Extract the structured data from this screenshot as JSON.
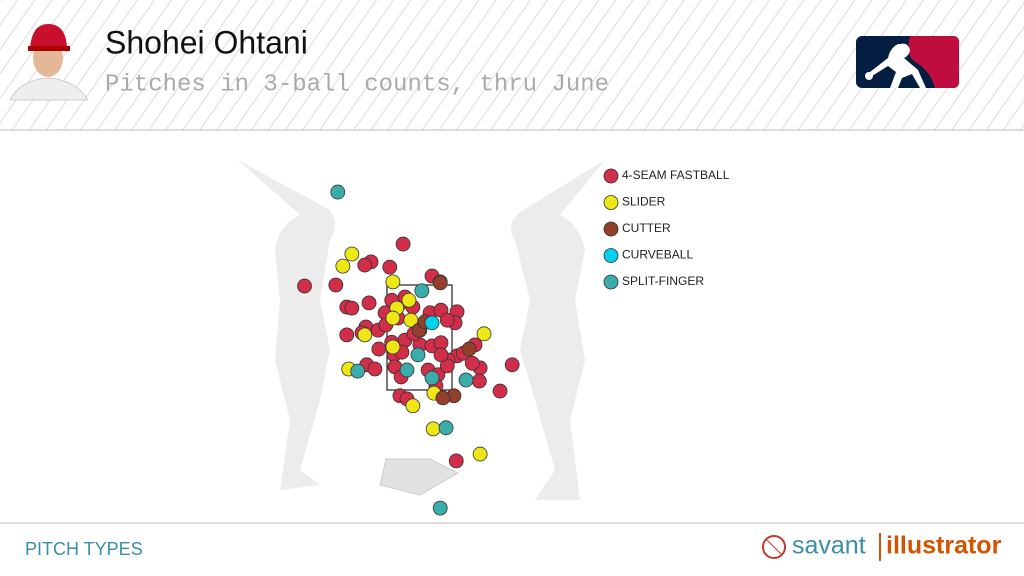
{
  "chart_data": {
    "type": "scatter",
    "title": "Shohei Ohtani",
    "subtitle": "Pitches in 3-ball counts, thru June",
    "xlim": [
      -5,
      5
    ],
    "ylim": [
      -1,
      6.5
    ],
    "legend": "right",
    "series": [
      {
        "name": "4-SEAM FASTBALL",
        "color": "#d22d49",
        "x": [
          -0.42,
          -1.24,
          -1.4,
          -0.76,
          0.32,
          -2.94,
          -2.14,
          -1.86,
          -1.73,
          -1.29,
          -0.88,
          -0.53,
          -0.17,
          0.27,
          0.55,
          0.96,
          0.91,
          0.71,
          -1.37,
          -1.06,
          -1.86,
          -1.47,
          -0.71,
          -0.37,
          0.01,
          0.32,
          0.55,
          0.96,
          0.73,
          1.12,
          1.42,
          1.55,
          1.35,
          -0.65,
          -1.04,
          -0.45,
          -0.14,
          -0.63,
          -0.47,
          -1.35,
          -1.14,
          0.22,
          0.47,
          0.71,
          0.55,
          2.37,
          1.53,
          2.06,
          0.42,
          -0.5,
          -0.32,
          0.94,
          -0.86,
          -0.71,
          -0.37,
          0.01,
          -0.55,
          0.53
        ],
        "y": [
          4.28,
          3.94,
          3.88,
          3.84,
          3.67,
          3.48,
          3.5,
          3.08,
          3.06,
          3.16,
          2.97,
          3.12,
          3.08,
          2.97,
          3.02,
          2.99,
          2.78,
          2.83,
          2.7,
          2.64,
          2.55,
          2.59,
          2.41,
          2.45,
          2.36,
          2.34,
          2.4,
          2.15,
          2.07,
          2.2,
          2.36,
          1.92,
          2.01,
          2.17,
          2.28,
          2.22,
          2.57,
          1.94,
          1.75,
          1.98,
          1.9,
          1.88,
          1.79,
          1.96,
          2.17,
          1.98,
          1.67,
          1.48,
          1.58,
          1.39,
          1.33,
          0.15,
          2.74,
          3.21,
          3.27,
          2.64,
          2.87,
          3.56
        ]
      },
      {
        "name": "SLIDER",
        "color": "#eee716",
        "x": [
          -1.73,
          -1.96,
          -0.68,
          -0.27,
          -0.58,
          -0.22,
          1.65,
          -1.4,
          -0.68,
          -1.81,
          -0.68,
          0.37,
          -0.17,
          0.35,
          1.55
        ],
        "y": [
          4.09,
          3.86,
          3.56,
          3.21,
          3.06,
          2.83,
          2.57,
          2.55,
          2.87,
          1.9,
          2.32,
          1.44,
          1.2,
          0.76,
          0.28
        ]
      },
      {
        "name": "CUTTER",
        "color": "#933f2c",
        "x": [
          0.53,
          -0.01,
          1.27,
          0.88,
          0.6,
          0.14
        ],
        "y": [
          3.54,
          2.64,
          2.28,
          1.39,
          1.35,
          2.8
        ]
      },
      {
        "name": "CURVEBALL",
        "color": "#00d1ed",
        "x": [
          0.32
        ],
        "y": [
          2.78
        ]
      },
      {
        "name": "SPLIT-FINGER",
        "color": "#3bacac",
        "x": [
          -2.09,
          0.06,
          -0.04,
          -0.32,
          -1.58,
          0.32,
          1.19,
          0.68,
          0.53
        ],
        "y": [
          5.27,
          3.39,
          2.17,
          1.88,
          1.86,
          1.73,
          1.69,
          0.78,
          -0.75
        ]
      }
    ]
  },
  "footer": {
    "label": "PITCH TYPES",
    "brand": [
      "savant",
      "illustrator"
    ]
  }
}
